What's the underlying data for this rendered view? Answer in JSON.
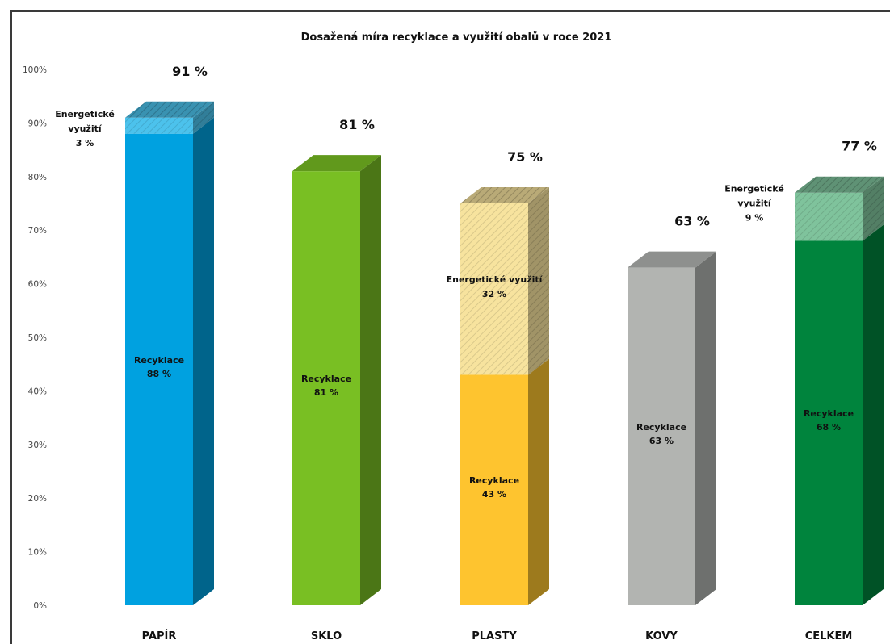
{
  "chart_data": {
    "type": "bar",
    "stacked": true,
    "title": "Dosažená míra recyklace a využití obalů v roce 2021",
    "categories": [
      "PAPÍR",
      "SKLO",
      "PLASTY",
      "KOVY",
      "CELKEM"
    ],
    "ylim": [
      0,
      100
    ],
    "yticks": [
      "0%",
      "10%",
      "20%",
      "30%",
      "40%",
      "50%",
      "60%",
      "70%",
      "80%",
      "90%",
      "100%"
    ],
    "series": [
      {
        "key": "recyklace",
        "values": [
          88,
          81,
          43,
          63,
          68
        ],
        "labels": [
          [
            "Recyklace",
            "88 %"
          ],
          [
            "Recyklace",
            "81 %"
          ],
          [
            "Recyklace",
            "43 %"
          ],
          [
            "Recyklace",
            "63 %"
          ],
          [
            "Recyklace",
            "68 %"
          ]
        ]
      },
      {
        "key": "energeticke",
        "values": [
          3,
          0,
          32,
          0,
          9
        ],
        "labels": [
          [
            "Energetické",
            "využití",
            "3 %"
          ],
          null,
          [
            "Energetické využití",
            "32 %"
          ],
          null,
          [
            "Energetické",
            "využití",
            "9 %"
          ]
        ]
      }
    ],
    "totals": [
      "91 %",
      "81 %",
      "75 %",
      "63 %",
      "77 %"
    ],
    "colors": {
      "recyklace": [
        "#00a1e0",
        "#79bf23",
        "#fec42f",
        "#b2b4b1",
        "#00843d"
      ],
      "energeticke": [
        "#4cc2ec",
        null,
        "#f7e39e",
        null,
        "#7fc39c"
      ]
    },
    "grid": false,
    "legend": "none"
  }
}
